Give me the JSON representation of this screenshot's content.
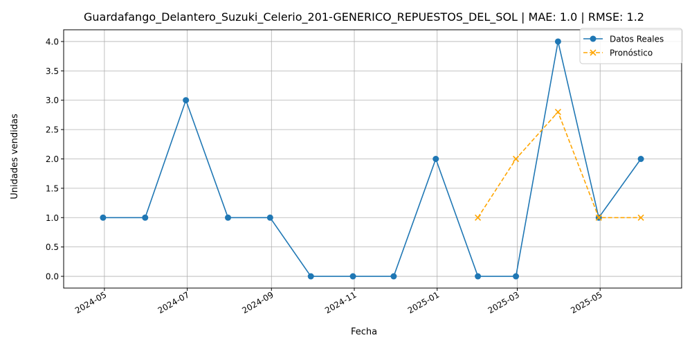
{
  "chart_data": {
    "type": "line",
    "title": "Guardafango_Delantero_Suzuki_Celerio_201-GENERICO_REPUESTOS_DEL_SOL | MAE: 1.0 | RMSE: 1.2",
    "xlabel": "Fecha",
    "ylabel": "Unidades vendidas",
    "ylim": [
      -0.2,
      4.2
    ],
    "xlim": [
      "2024-04-01",
      "2025-06-30"
    ],
    "y_ticks": [
      0.0,
      0.5,
      1.0,
      1.5,
      2.0,
      2.5,
      3.0,
      3.5,
      4.0
    ],
    "y_tick_labels": [
      "0.0",
      "0.5",
      "1.0",
      "1.5",
      "2.0",
      "2.5",
      "3.0",
      "3.5",
      "4.0"
    ],
    "x_ticks": [
      "2024-05-01",
      "2024-07-01",
      "2024-09-01",
      "2024-11-01",
      "2025-01-01",
      "2025-03-01",
      "2025-05-01"
    ],
    "x_tick_labels": [
      "2024-05",
      "2024-07",
      "2024-09",
      "2024-11",
      "2025-01",
      "2025-03",
      "2025-05"
    ],
    "grid": true,
    "legend_position": "top-right",
    "series": [
      {
        "name": "Datos Reales",
        "color": "#1f77b4",
        "style": "solid",
        "marker": "circle",
        "x": [
          "2024-04-30",
          "2024-05-31",
          "2024-06-30",
          "2024-07-31",
          "2024-08-31",
          "2024-09-30",
          "2024-10-31",
          "2024-11-30",
          "2024-12-31",
          "2025-01-31",
          "2025-02-28",
          "2025-03-31",
          "2025-04-30",
          "2025-05-31"
        ],
        "values": [
          1,
          1,
          3,
          1,
          1,
          0,
          0,
          0,
          2,
          0,
          0,
          4,
          1,
          2
        ]
      },
      {
        "name": "Pronóstico",
        "color": "#ffa500",
        "style": "dashed",
        "marker": "x",
        "x": [
          "2025-01-31",
          "2025-02-28",
          "2025-03-31",
          "2025-04-30",
          "2025-05-31"
        ],
        "values": [
          1.0,
          2.0,
          2.8,
          1.0,
          1.0
        ]
      }
    ]
  }
}
